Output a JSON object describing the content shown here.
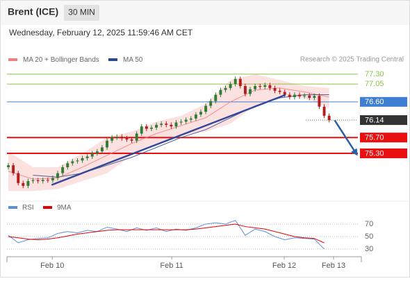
{
  "chart_data": {
    "type": "candlestick",
    "title": "Brent (ICE)",
    "timeframe": "30 MIN",
    "timestamp": "Wednesday, February 12, 2025 11:59:46 AM CET",
    "source": "Research © 2025 Trading Central",
    "xlim": [
      0,
      70.4
    ],
    "xticks": [
      {
        "value": 8.9,
        "label": "Feb 10"
      },
      {
        "value": 33.1,
        "label": "Feb 11"
      },
      {
        "value": 55.9,
        "label": "Feb 12"
      },
      {
        "value": 65.9,
        "label": "Feb 13"
      }
    ],
    "ylim": [
      74.18,
      77.42
    ],
    "up_color": "#2e7d32",
    "down_color": "#b71c1c",
    "open": [
      74.95,
      75.0,
      74.8,
      74.55,
      74.48,
      74.6,
      74.62,
      74.6,
      74.63,
      74.62,
      74.68,
      74.8,
      74.95,
      75.05,
      75.1,
      75.12,
      75.18,
      75.22,
      75.3,
      75.35,
      75.45,
      75.62,
      75.7,
      75.72,
      75.68,
      75.65,
      75.62,
      75.8,
      75.98,
      75.92,
      75.95,
      76.02,
      76.05,
      76.02,
      75.98,
      76.08,
      76.1,
      76.15,
      76.18,
      76.28,
      76.35,
      76.5,
      76.62,
      76.78,
      76.9,
      76.95,
      77.05,
      77.18,
      77.0,
      76.8,
      76.92,
      77.0,
      76.98,
      77.02,
      76.95,
      76.88,
      76.85,
      76.78,
      76.72,
      76.78,
      76.74,
      76.76,
      76.7,
      76.75,
      76.48,
      76.25
    ],
    "high": [
      75.06,
      75.06,
      74.86,
      74.61,
      74.66,
      74.68,
      74.68,
      74.69,
      74.69,
      74.74,
      74.86,
      75.01,
      75.11,
      75.16,
      75.18,
      75.24,
      75.28,
      75.36,
      75.41,
      75.51,
      75.68,
      75.76,
      75.78,
      75.78,
      75.74,
      75.71,
      75.86,
      76.04,
      76.04,
      76.01,
      76.08,
      76.11,
      76.11,
      76.08,
      76.14,
      76.16,
      76.21,
      76.24,
      76.34,
      76.41,
      76.56,
      76.68,
      76.84,
      76.96,
      77.01,
      77.11,
      77.24,
      77.24,
      77.06,
      76.98,
      77.06,
      77.06,
      77.08,
      77.08,
      77.01,
      76.94,
      76.91,
      76.84,
      76.84,
      76.84,
      76.82,
      76.82,
      76.81,
      76.81,
      76.54,
      76.31
    ],
    "low": [
      74.89,
      74.74,
      74.49,
      74.42,
      74.42,
      74.54,
      74.54,
      74.54,
      74.56,
      74.56,
      74.62,
      74.74,
      74.89,
      74.99,
      75.04,
      75.06,
      75.12,
      75.16,
      75.24,
      75.29,
      75.39,
      75.56,
      75.64,
      75.62,
      75.59,
      75.56,
      75.56,
      75.74,
      75.86,
      75.86,
      75.89,
      75.96,
      75.96,
      75.92,
      75.92,
      76.02,
      76.04,
      76.09,
      76.12,
      76.22,
      76.29,
      76.44,
      76.56,
      76.72,
      76.84,
      76.89,
      76.99,
      76.94,
      76.74,
      76.74,
      76.86,
      76.92,
      76.92,
      76.89,
      76.82,
      76.79,
      76.72,
      76.66,
      76.66,
      76.68,
      76.68,
      76.64,
      76.64,
      76.42,
      76.19,
      76.08
    ],
    "close": [
      75.0,
      74.8,
      74.55,
      74.48,
      74.6,
      74.62,
      74.6,
      74.63,
      74.62,
      74.68,
      74.8,
      74.95,
      75.05,
      75.1,
      75.12,
      75.18,
      75.22,
      75.3,
      75.35,
      75.45,
      75.62,
      75.7,
      75.72,
      75.68,
      75.65,
      75.62,
      75.8,
      75.98,
      75.92,
      75.95,
      76.02,
      76.05,
      76.02,
      75.98,
      76.08,
      76.1,
      76.15,
      76.18,
      76.28,
      76.35,
      76.5,
      76.62,
      76.78,
      76.9,
      76.95,
      77.05,
      77.18,
      77.0,
      76.8,
      76.92,
      77.0,
      76.98,
      77.02,
      76.95,
      76.88,
      76.85,
      76.78,
      76.72,
      76.78,
      76.74,
      76.76,
      76.7,
      76.75,
      76.48,
      76.25,
      76.14
    ],
    "overlays": [
      {
        "name": "MA 20 + Bollinger Bands",
        "color": "#f08080",
        "band_color": "#fbd9d9",
        "x": [
          0,
          5,
          10,
          15,
          20,
          25,
          30,
          35,
          40,
          45,
          50,
          55,
          60,
          65
        ],
        "values": [
          74.85,
          74.65,
          74.68,
          74.95,
          75.25,
          75.55,
          75.8,
          76.0,
          76.2,
          76.6,
          76.9,
          76.95,
          76.85,
          76.72
        ],
        "upper": [
          75.35,
          74.95,
          74.95,
          75.3,
          75.7,
          75.85,
          76.1,
          76.25,
          76.55,
          77.15,
          77.3,
          77.15,
          77.0,
          76.95
        ],
        "lower": [
          74.35,
          74.35,
          74.4,
          74.6,
          74.8,
          75.25,
          75.5,
          75.75,
          75.85,
          76.05,
          76.5,
          76.75,
          76.7,
          76.45
        ]
      },
      {
        "name": "MA 50",
        "color": "#2c4a8a",
        "x": [
          5,
          10,
          15,
          20,
          25,
          30,
          35,
          40,
          45,
          50,
          55,
          60,
          65
        ],
        "values": [
          74.75,
          74.7,
          74.8,
          75.0,
          75.2,
          75.45,
          75.7,
          75.9,
          76.2,
          76.5,
          76.7,
          76.78,
          76.78
        ]
      }
    ],
    "levels": [
      {
        "value": 77.3,
        "label": "77.30",
        "color": "#8bc34a",
        "style": "text"
      },
      {
        "value": 77.05,
        "label": "77.05",
        "color": "#8bc34a",
        "style": "text"
      },
      {
        "value": 76.6,
        "label": "76.60",
        "color": "#3f7fd1",
        "style": "box"
      },
      {
        "value": 76.14,
        "label": "76.14",
        "color": "#333333",
        "style": "dotted"
      },
      {
        "value": 75.7,
        "label": "75.70",
        "color": "#e81010",
        "style": "thick"
      },
      {
        "value": 75.3,
        "label": "75.30",
        "color": "#e81010",
        "style": "thick"
      }
    ],
    "trendlines": [
      {
        "color": "#34489a",
        "x": [
          8.9,
          56
        ],
        "y": [
          74.51,
          76.77
        ]
      },
      {
        "color": "#2b5fa8",
        "x": [
          66.2,
          70.4
        ],
        "y": [
          76.12,
          75.31
        ],
        "arrow": true
      }
    ],
    "rsi": {
      "ylim": [
        20,
        95.5
      ],
      "yticks": [
        70,
        50,
        30
      ],
      "x": [
        0,
        2,
        4,
        6,
        8,
        10,
        12,
        14,
        16,
        18,
        20,
        22,
        24,
        26,
        28,
        30,
        32,
        34,
        36,
        38,
        40,
        42,
        44,
        46,
        48,
        50,
        52,
        54,
        56,
        58,
        60,
        62,
        64
      ],
      "series": [
        {
          "name": "RSI",
          "color": "#5b8fd9",
          "values": [
            52,
            40,
            45,
            47,
            48,
            55,
            58,
            56,
            60,
            58,
            65,
            62,
            58,
            64,
            60,
            64,
            58,
            62,
            60,
            64,
            70,
            72,
            70,
            76,
            52,
            62,
            58,
            50,
            45,
            48,
            47,
            46,
            30
          ]
        },
        {
          "name": "9MA",
          "color": "#e00000",
          "values": [
            50,
            48,
            46,
            45,
            46,
            48,
            51,
            54,
            56,
            58,
            60,
            61,
            61,
            61,
            61,
            61,
            61,
            61,
            61,
            62,
            64,
            66,
            68,
            70,
            66,
            64,
            62,
            58,
            54,
            50,
            48,
            47,
            40
          ]
        }
      ]
    }
  }
}
